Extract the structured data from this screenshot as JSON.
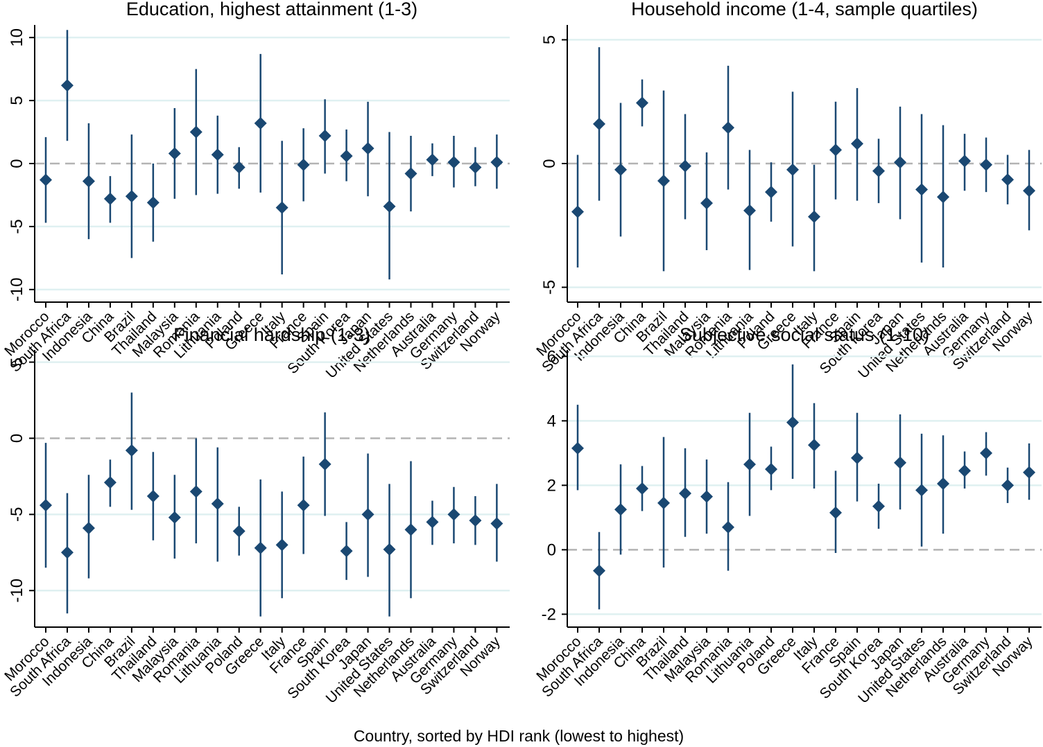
{
  "colors": {
    "marker": "#1a4872",
    "grid": "#dff0f1",
    "zero": "#b3b3b3",
    "axis": "#000000"
  },
  "xlabel": "Country, sorted by HDI rank (lowest to highest)",
  "chart_data": [
    {
      "type": "scatter",
      "title": "Education, highest attainment (1-3)",
      "categories": [
        "Morocco",
        "South Africa",
        "Indonesia",
        "China",
        "Brazil",
        "Thailand",
        "Malaysia",
        "Romania",
        "Lithuania",
        "Poland",
        "Greece",
        "Italy",
        "France",
        "Spain",
        "South Korea",
        "Japan",
        "United States",
        "Netherlands",
        "Australia",
        "Germany",
        "Switzerland",
        "Norway"
      ],
      "ylim": [
        -11,
        11
      ],
      "yticks": [
        10,
        5,
        0,
        -5,
        -10
      ],
      "ytick_labels": [
        "10",
        "5",
        "0",
        "-5",
        "-10"
      ],
      "ytick_rotated": true,
      "series": [
        {
          "name": "estimate",
          "values": [
            -1.3,
            6.2,
            -1.4,
            -2.8,
            -2.6,
            -3.1,
            0.8,
            2.5,
            0.7,
            -0.3,
            3.2,
            -3.5,
            -0.1,
            2.2,
            0.6,
            1.2,
            -3.4,
            -0.8,
            0.3,
            0.1,
            -0.3,
            0.1
          ],
          "lower": [
            -4.7,
            1.8,
            -6.0,
            -4.7,
            -7.5,
            -6.2,
            -2.8,
            -2.5,
            -2.4,
            -2.0,
            -2.3,
            -8.8,
            -3.0,
            -0.8,
            -1.4,
            -2.6,
            -9.2,
            -3.8,
            -1.0,
            -1.9,
            -1.8,
            -2.0
          ],
          "upper": [
            2.1,
            10.6,
            3.2,
            -1.0,
            2.3,
            0.0,
            4.4,
            7.5,
            3.8,
            1.3,
            8.7,
            1.8,
            2.8,
            5.1,
            2.7,
            4.9,
            2.5,
            2.2,
            1.6,
            2.2,
            1.3,
            2.3
          ]
        }
      ]
    },
    {
      "type": "scatter",
      "title": "Household income (1-4, sample quartiles)",
      "categories": [
        "Morocco",
        "South Africa",
        "Indonesia",
        "China",
        "Brazil",
        "Thailand",
        "Malaysia",
        "Romania",
        "Lithuania",
        "Poland",
        "Greece",
        "Italy",
        "France",
        "Spain",
        "South Korea",
        "Japan",
        "United States",
        "Netherlands",
        "Australia",
        "Germany",
        "Switzerland",
        "Norway"
      ],
      "ylim": [
        -5.6,
        5.6
      ],
      "yticks": [
        5,
        0,
        -5
      ],
      "ytick_labels": [
        "5",
        "0",
        "-5"
      ],
      "ytick_rotated": true,
      "series": [
        {
          "name": "estimate",
          "values": [
            -1.95,
            1.6,
            -0.25,
            2.45,
            -0.7,
            -0.1,
            -1.6,
            1.45,
            -1.9,
            -1.15,
            -0.25,
            -2.15,
            0.55,
            0.8,
            -0.3,
            0.05,
            -1.05,
            -1.35,
            0.1,
            -0.05,
            -0.65,
            -1.1
          ],
          "lower": [
            -4.2,
            -1.5,
            -2.95,
            1.5,
            -4.35,
            -2.25,
            -3.5,
            -1.05,
            -4.3,
            -2.35,
            -3.35,
            -4.35,
            -1.45,
            -1.5,
            -1.6,
            -2.25,
            -4.0,
            -4.2,
            -1.1,
            -1.15,
            -1.65,
            -2.7
          ],
          "upper": [
            0.35,
            4.7,
            2.45,
            3.4,
            2.95,
            2.0,
            0.45,
            3.95,
            0.55,
            0.05,
            2.9,
            -0.05,
            2.5,
            3.05,
            1.0,
            2.3,
            2.0,
            1.55,
            1.2,
            1.05,
            0.35,
            0.55
          ]
        }
      ]
    },
    {
      "type": "scatter",
      "title": "Financial hardship (1-3)",
      "categories": [
        "Morocco",
        "South Africa",
        "Indonesia",
        "China",
        "Brazil",
        "Thailand",
        "Malaysia",
        "Romania",
        "Lithuania",
        "Poland",
        "Greece",
        "Italy",
        "France",
        "Spain",
        "South Korea",
        "Japan",
        "United States",
        "Netherlands",
        "Australia",
        "Germany",
        "Switzerland",
        "Norway"
      ],
      "ylim": [
        -12.4,
        5.8
      ],
      "yticks": [
        5,
        0,
        -5,
        -10
      ],
      "ytick_labels": [
        "5",
        "0",
        "-5",
        "-10"
      ],
      "ytick_rotated": true,
      "series": [
        {
          "name": "estimate",
          "values": [
            -4.4,
            -7.5,
            -5.9,
            -2.9,
            -0.8,
            -3.8,
            -5.2,
            -3.5,
            -4.3,
            -6.1,
            -7.2,
            -7.0,
            -4.4,
            -1.7,
            -7.4,
            -5.0,
            -7.3,
            -6.0,
            -5.5,
            -5.0,
            -5.4,
            -5.6
          ],
          "lower": [
            -8.5,
            -11.5,
            -9.2,
            -4.5,
            -4.7,
            -6.7,
            -7.9,
            -6.9,
            -8.1,
            -7.7,
            -11.7,
            -10.5,
            -7.6,
            -5.1,
            -9.3,
            -9.1,
            -11.7,
            -10.5,
            -7.0,
            -6.9,
            -7.0,
            -8.1
          ],
          "upper": [
            -0.3,
            -3.6,
            -2.4,
            -1.4,
            3.0,
            -0.9,
            -2.4,
            0.0,
            -0.6,
            -4.5,
            -2.7,
            -3.5,
            -1.2,
            1.7,
            -5.5,
            -1.0,
            -3.0,
            -1.5,
            -4.1,
            -3.2,
            -3.8,
            -3.0
          ]
        }
      ]
    },
    {
      "type": "scatter",
      "title": "Subjective social status (1-10)",
      "categories": [
        "Morocco",
        "South Africa",
        "Indonesia",
        "China",
        "Brazil",
        "Thailand",
        "Malaysia",
        "Romania",
        "Lithuania",
        "Poland",
        "Greece",
        "Italy",
        "France",
        "Spain",
        "South Korea",
        "Japan",
        "United States",
        "Netherlands",
        "Australia",
        "Germany",
        "Switzerland",
        "Norway"
      ],
      "ylim": [
        -2.4,
        6.2
      ],
      "yticks": [
        6,
        4,
        2,
        0,
        -2
      ],
      "ytick_labels": [
        "6",
        "4",
        "2",
        "0",
        "-2"
      ],
      "ytick_rotated": false,
      "series": [
        {
          "name": "estimate",
          "values": [
            3.15,
            -0.65,
            1.25,
            1.9,
            1.45,
            1.75,
            1.65,
            0.7,
            2.65,
            2.5,
            3.95,
            3.25,
            1.15,
            2.85,
            1.35,
            2.7,
            1.85,
            2.05,
            2.45,
            3.0,
            2.0,
            2.4
          ],
          "lower": [
            1.85,
            -1.85,
            -0.15,
            1.2,
            -0.55,
            0.4,
            0.5,
            -0.65,
            1.05,
            1.85,
            2.2,
            1.9,
            -0.1,
            1.5,
            0.65,
            1.25,
            0.1,
            0.5,
            1.9,
            2.3,
            1.45,
            1.55
          ],
          "upper": [
            4.5,
            0.55,
            2.65,
            2.6,
            3.5,
            3.15,
            2.8,
            2.1,
            4.25,
            3.2,
            5.75,
            4.55,
            2.45,
            4.25,
            2.05,
            4.2,
            3.6,
            3.55,
            3.05,
            3.65,
            2.55,
            3.3
          ]
        }
      ]
    }
  ]
}
